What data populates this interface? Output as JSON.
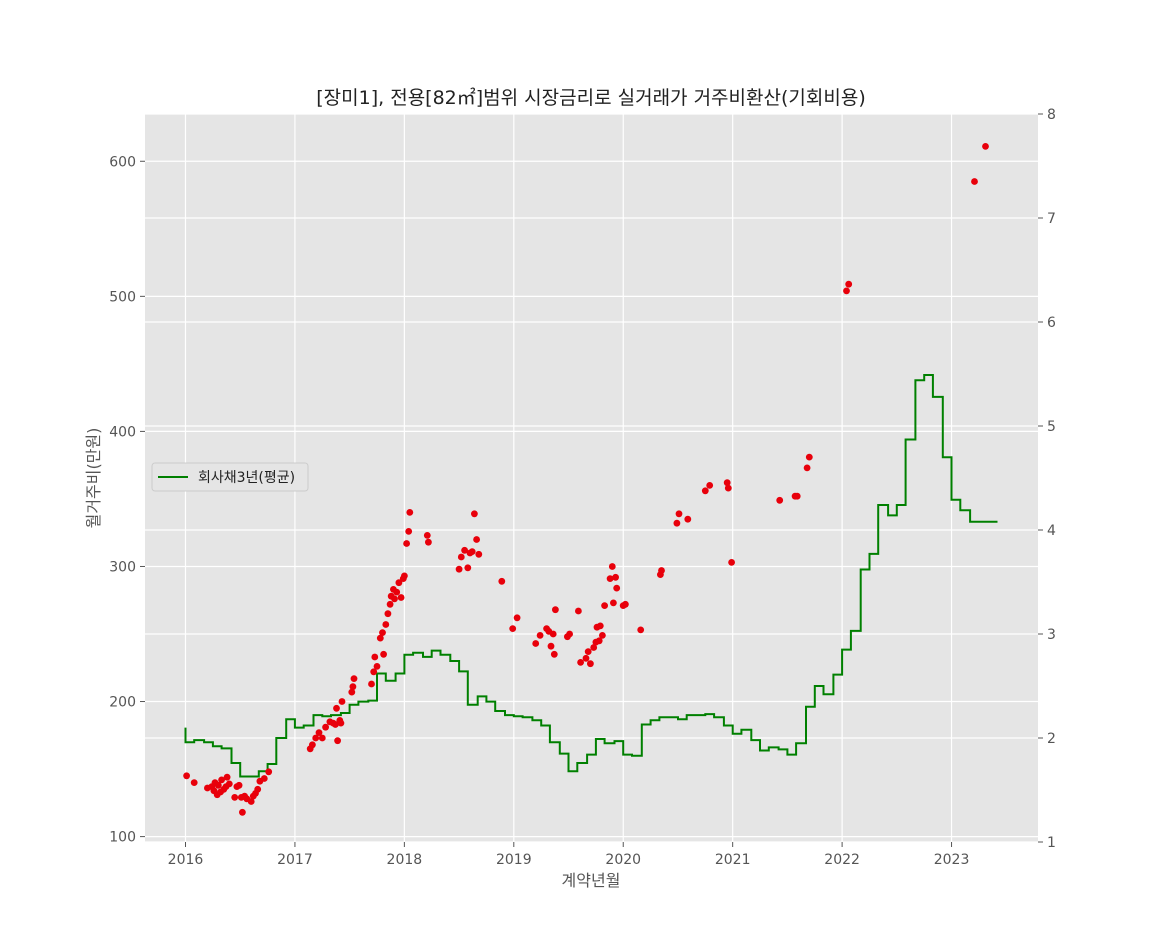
{
  "chart_data": {
    "type": "scatter",
    "title": "[장미1], 전용[82㎡]범위 시장금리로 실거래가 거주비환산(기회비용)",
    "xlabel": "계약년월",
    "ylabel": "월거주비(만원)",
    "ylim": [
      96,
      635
    ],
    "y_ticks": [
      100,
      200,
      300,
      400,
      500,
      600
    ],
    "y2lim": [
      1,
      8
    ],
    "y2_ticks": [
      1,
      2,
      3,
      4,
      5,
      6,
      7,
      8
    ],
    "xlim": [
      2015.63,
      2023.79
    ],
    "x_ticks": [
      2016,
      2017,
      2018,
      2019,
      2020,
      2021,
      2022,
      2023
    ],
    "grid": true,
    "legend_position": "center-left",
    "colors": {
      "scatter": "#e8000b",
      "line": "#008000",
      "panel": "#e5e5e5",
      "grid": "#ffffff"
    },
    "series": [
      {
        "type": "scatter",
        "axis": "left",
        "points": [
          [
            2016.01,
            145
          ],
          [
            2016.08,
            140
          ],
          [
            2016.2,
            136
          ],
          [
            2016.24,
            137
          ],
          [
            2016.26,
            134
          ],
          [
            2016.27,
            140
          ],
          [
            2016.29,
            131
          ],
          [
            2016.3,
            138
          ],
          [
            2016.32,
            133
          ],
          [
            2016.33,
            142
          ],
          [
            2016.35,
            135
          ],
          [
            2016.37,
            137
          ],
          [
            2016.38,
            144
          ],
          [
            2016.4,
            139
          ],
          [
            2016.45,
            129
          ],
          [
            2016.47,
            137
          ],
          [
            2016.49,
            138
          ],
          [
            2016.51,
            129
          ],
          [
            2016.52,
            118
          ],
          [
            2016.54,
            130
          ],
          [
            2016.56,
            128
          ],
          [
            2016.6,
            126
          ],
          [
            2016.62,
            130
          ],
          [
            2016.64,
            132
          ],
          [
            2016.66,
            135
          ],
          [
            2016.68,
            141
          ],
          [
            2016.72,
            143
          ],
          [
            2016.76,
            148
          ],
          [
            2017.14,
            165
          ],
          [
            2017.16,
            168
          ],
          [
            2017.19,
            173
          ],
          [
            2017.22,
            177
          ],
          [
            2017.25,
            173
          ],
          [
            2017.28,
            181
          ],
          [
            2017.32,
            185
          ],
          [
            2017.35,
            184
          ],
          [
            2017.37,
            183
          ],
          [
            2017.38,
            195
          ],
          [
            2017.39,
            171
          ],
          [
            2017.41,
            186
          ],
          [
            2017.42,
            184
          ],
          [
            2017.43,
            200
          ],
          [
            2017.52,
            207
          ],
          [
            2017.53,
            211
          ],
          [
            2017.54,
            217
          ],
          [
            2017.7,
            213
          ],
          [
            2017.72,
            222
          ],
          [
            2017.73,
            233
          ],
          [
            2017.75,
            226
          ],
          [
            2017.78,
            247
          ],
          [
            2017.8,
            251
          ],
          [
            2017.81,
            235
          ],
          [
            2017.83,
            257
          ],
          [
            2017.85,
            265
          ],
          [
            2017.87,
            272
          ],
          [
            2017.88,
            278
          ],
          [
            2017.9,
            283
          ],
          [
            2017.91,
            276
          ],
          [
            2017.93,
            281
          ],
          [
            2017.95,
            288
          ],
          [
            2017.97,
            277
          ],
          [
            2017.99,
            291
          ],
          [
            2018.0,
            293
          ],
          [
            2018.02,
            317
          ],
          [
            2018.04,
            326
          ],
          [
            2018.05,
            340
          ],
          [
            2018.21,
            323
          ],
          [
            2018.22,
            318
          ],
          [
            2018.5,
            298
          ],
          [
            2018.52,
            307
          ],
          [
            2018.55,
            312
          ],
          [
            2018.58,
            299
          ],
          [
            2018.6,
            310
          ],
          [
            2018.62,
            311
          ],
          [
            2018.64,
            339
          ],
          [
            2018.66,
            320
          ],
          [
            2018.68,
            309
          ],
          [
            2018.89,
            289
          ],
          [
            2018.99,
            254
          ],
          [
            2019.03,
            262
          ],
          [
            2019.2,
            243
          ],
          [
            2019.24,
            249
          ],
          [
            2019.3,
            254
          ],
          [
            2019.32,
            252
          ],
          [
            2019.34,
            241
          ],
          [
            2019.36,
            250
          ],
          [
            2019.37,
            235
          ],
          [
            2019.38,
            268
          ],
          [
            2019.49,
            248
          ],
          [
            2019.51,
            250
          ],
          [
            2019.59,
            267
          ],
          [
            2019.61,
            229
          ],
          [
            2019.66,
            232
          ],
          [
            2019.68,
            237
          ],
          [
            2019.7,
            228
          ],
          [
            2019.73,
            240
          ],
          [
            2019.75,
            244
          ],
          [
            2019.76,
            255
          ],
          [
            2019.78,
            245
          ],
          [
            2019.79,
            256
          ],
          [
            2019.81,
            249
          ],
          [
            2019.83,
            271
          ],
          [
            2019.88,
            291
          ],
          [
            2019.9,
            300
          ],
          [
            2019.91,
            273
          ],
          [
            2019.93,
            292
          ],
          [
            2019.94,
            284
          ],
          [
            2020.0,
            271
          ],
          [
            2020.02,
            272
          ],
          [
            2020.16,
            253
          ],
          [
            2020.34,
            294
          ],
          [
            2020.35,
            297
          ],
          [
            2020.49,
            332
          ],
          [
            2020.51,
            339
          ],
          [
            2020.59,
            335
          ],
          [
            2020.75,
            356
          ],
          [
            2020.79,
            360
          ],
          [
            2020.95,
            362
          ],
          [
            2020.96,
            358
          ],
          [
            2020.99,
            303
          ],
          [
            2021.43,
            349
          ],
          [
            2021.57,
            352
          ],
          [
            2021.59,
            352
          ],
          [
            2021.68,
            373
          ],
          [
            2021.7,
            381
          ],
          [
            2022.04,
            504
          ],
          [
            2022.06,
            509
          ],
          [
            2023.21,
            585
          ],
          [
            2023.31,
            611
          ]
        ]
      },
      {
        "type": "step",
        "name": "회사채3년(평균)",
        "axis": "right",
        "points": [
          [
            2016.0,
            2.1
          ],
          [
            2016.0,
            1.96
          ],
          [
            2016.08,
            1.98
          ],
          [
            2016.17,
            1.96
          ],
          [
            2016.25,
            1.92
          ],
          [
            2016.33,
            1.9
          ],
          [
            2016.42,
            1.76
          ],
          [
            2016.5,
            1.63
          ],
          [
            2016.58,
            1.63
          ],
          [
            2016.67,
            1.68
          ],
          [
            2016.75,
            1.75
          ],
          [
            2016.83,
            2.0
          ],
          [
            2016.92,
            2.18
          ],
          [
            2017.0,
            2.1
          ],
          [
            2017.08,
            2.12
          ],
          [
            2017.17,
            2.22
          ],
          [
            2017.25,
            2.21
          ],
          [
            2017.33,
            2.22
          ],
          [
            2017.42,
            2.24
          ],
          [
            2017.5,
            2.32
          ],
          [
            2017.58,
            2.35
          ],
          [
            2017.67,
            2.36
          ],
          [
            2017.75,
            2.62
          ],
          [
            2017.83,
            2.55
          ],
          [
            2017.92,
            2.62
          ],
          [
            2018.0,
            2.8
          ],
          [
            2018.08,
            2.82
          ],
          [
            2018.17,
            2.78
          ],
          [
            2018.25,
            2.84
          ],
          [
            2018.33,
            2.8
          ],
          [
            2018.42,
            2.74
          ],
          [
            2018.5,
            2.64
          ],
          [
            2018.58,
            2.32
          ],
          [
            2018.67,
            2.4
          ],
          [
            2018.75,
            2.35
          ],
          [
            2018.83,
            2.26
          ],
          [
            2018.92,
            2.22
          ],
          [
            2019.0,
            2.21
          ],
          [
            2019.08,
            2.2
          ],
          [
            2019.17,
            2.17
          ],
          [
            2019.25,
            2.12
          ],
          [
            2019.33,
            1.96
          ],
          [
            2019.42,
            1.85
          ],
          [
            2019.5,
            1.68
          ],
          [
            2019.58,
            1.76
          ],
          [
            2019.67,
            1.84
          ],
          [
            2019.75,
            1.99
          ],
          [
            2019.83,
            1.95
          ],
          [
            2019.92,
            1.97
          ],
          [
            2020.0,
            1.84
          ],
          [
            2020.08,
            1.83
          ],
          [
            2020.17,
            2.13
          ],
          [
            2020.25,
            2.17
          ],
          [
            2020.33,
            2.2
          ],
          [
            2020.42,
            2.2
          ],
          [
            2020.5,
            2.18
          ],
          [
            2020.58,
            2.22
          ],
          [
            2020.67,
            2.22
          ],
          [
            2020.75,
            2.23
          ],
          [
            2020.83,
            2.2
          ],
          [
            2020.92,
            2.12
          ],
          [
            2021.0,
            2.04
          ],
          [
            2021.08,
            2.08
          ],
          [
            2021.17,
            1.98
          ],
          [
            2021.25,
            1.88
          ],
          [
            2021.33,
            1.91
          ],
          [
            2021.42,
            1.89
          ],
          [
            2021.5,
            1.84
          ],
          [
            2021.58,
            1.95
          ],
          [
            2021.67,
            2.3
          ],
          [
            2021.75,
            2.5
          ],
          [
            2021.83,
            2.42
          ],
          [
            2021.92,
            2.61
          ],
          [
            2022.0,
            2.85
          ],
          [
            2022.08,
            3.03
          ],
          [
            2022.17,
            3.62
          ],
          [
            2022.25,
            3.77
          ],
          [
            2022.33,
            4.24
          ],
          [
            2022.42,
            4.14
          ],
          [
            2022.5,
            4.24
          ],
          [
            2022.58,
            4.87
          ],
          [
            2022.67,
            5.44
          ],
          [
            2022.75,
            5.49
          ],
          [
            2022.83,
            5.28
          ],
          [
            2022.92,
            4.7
          ],
          [
            2023.0,
            4.29
          ],
          [
            2023.08,
            4.19
          ],
          [
            2023.17,
            4.08
          ],
          [
            2023.25,
            4.08
          ],
          [
            2023.42,
            4.08
          ]
        ]
      }
    ]
  }
}
